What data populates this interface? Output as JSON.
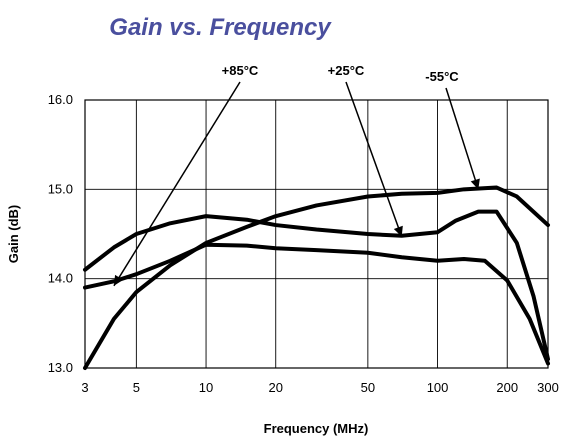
{
  "chart_data": {
    "type": "line",
    "title": "Gain vs. Frequency",
    "xlabel": "Frequency (MHz)",
    "ylabel": "Gain (dB)",
    "x_scale": "log",
    "xlim": [
      3,
      300
    ],
    "ylim": [
      13.0,
      16.0
    ],
    "x_ticks": [
      3,
      5,
      10,
      20,
      50,
      100,
      200,
      300
    ],
    "x_tick_labels": [
      "3",
      "5",
      "10",
      "20",
      "50",
      "100",
      "200",
      "300"
    ],
    "y_ticks": [
      13.0,
      14.0,
      15.0,
      16.0
    ],
    "y_tick_labels": [
      "13.0",
      "14.0",
      "15.0",
      "16.0"
    ],
    "grid": true,
    "colors": {
      "title": "#4a4f9e",
      "line": "#000000",
      "grid": "#000000"
    },
    "series": [
      {
        "name": "-55°C",
        "points": [
          [
            3,
            14.1
          ],
          [
            4,
            14.35
          ],
          [
            5,
            14.5
          ],
          [
            7,
            14.62
          ],
          [
            10,
            14.7
          ],
          [
            15,
            14.66
          ],
          [
            20,
            14.6
          ],
          [
            30,
            14.55
          ],
          [
            50,
            14.5
          ],
          [
            70,
            14.48
          ],
          [
            100,
            14.52
          ],
          [
            120,
            14.65
          ],
          [
            150,
            14.75
          ],
          [
            180,
            14.75
          ],
          [
            220,
            14.4
          ],
          [
            260,
            13.8
          ],
          [
            300,
            13.1
          ]
        ]
      },
      {
        "name": "+25°C",
        "points": [
          [
            3,
            13.0
          ],
          [
            4,
            13.55
          ],
          [
            5,
            13.85
          ],
          [
            7,
            14.15
          ],
          [
            10,
            14.4
          ],
          [
            15,
            14.58
          ],
          [
            20,
            14.7
          ],
          [
            30,
            14.82
          ],
          [
            50,
            14.92
          ],
          [
            70,
            14.95
          ],
          [
            100,
            14.96
          ],
          [
            130,
            15.0
          ],
          [
            180,
            15.02
          ],
          [
            220,
            14.92
          ],
          [
            300,
            14.6
          ]
        ]
      },
      {
        "name": "+85°C",
        "points": [
          [
            3,
            13.9
          ],
          [
            4,
            13.97
          ],
          [
            5,
            14.05
          ],
          [
            7,
            14.2
          ],
          [
            10,
            14.38
          ],
          [
            15,
            14.37
          ],
          [
            20,
            14.34
          ],
          [
            30,
            14.32
          ],
          [
            50,
            14.29
          ],
          [
            70,
            14.24
          ],
          [
            100,
            14.2
          ],
          [
            130,
            14.22
          ],
          [
            160,
            14.2
          ],
          [
            200,
            13.98
          ],
          [
            250,
            13.55
          ],
          [
            300,
            13.05
          ]
        ]
      }
    ],
    "annotations": [
      {
        "text": "+85°C",
        "arrow_to": [
          4,
          13.92
        ]
      },
      {
        "text": "+25°C",
        "arrow_to": [
          70,
          14.47
        ]
      },
      {
        "text": "-55°C",
        "arrow_to": [
          150,
          15.0
        ]
      }
    ]
  }
}
